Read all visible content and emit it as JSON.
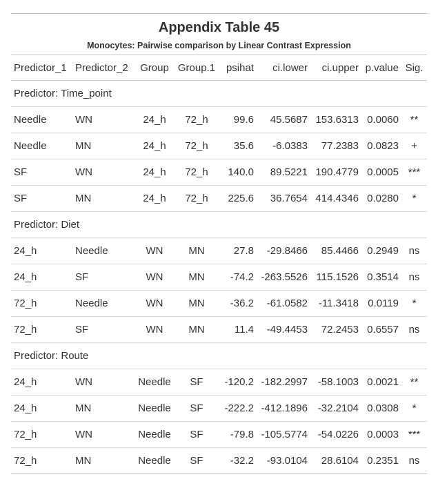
{
  "title": "Appendix Table 45",
  "subtitle": "Monocytes: Pairwise comparison by Linear Contrast Expression",
  "columns": [
    "Predictor_1",
    "Predictor_2",
    "Group",
    "Group.1",
    "psihat",
    "ci.lower",
    "ci.upper",
    "p.value",
    "Sig."
  ],
  "sections": [
    {
      "label": "Predictor: Time_point",
      "rows": [
        [
          "Needle",
          "WN",
          "24_h",
          "72_h",
          "99.6",
          "45.5687",
          "153.6313",
          "0.0060",
          "**"
        ],
        [
          "Needle",
          "MN",
          "24_h",
          "72_h",
          "35.6",
          "-6.0383",
          "77.2383",
          "0.0823",
          "+"
        ],
        [
          "SF",
          "WN",
          "24_h",
          "72_h",
          "140.0",
          "89.5221",
          "190.4779",
          "0.0005",
          "***"
        ],
        [
          "SF",
          "MN",
          "24_h",
          "72_h",
          "225.6",
          "36.7654",
          "414.4346",
          "0.0280",
          "*"
        ]
      ]
    },
    {
      "label": "Predictor: Diet",
      "rows": [
        [
          "24_h",
          "Needle",
          "WN",
          "MN",
          "27.8",
          "-29.8466",
          "85.4466",
          "0.2949",
          "ns"
        ],
        [
          "24_h",
          "SF",
          "WN",
          "MN",
          "-74.2",
          "-263.5526",
          "115.1526",
          "0.3514",
          "ns"
        ],
        [
          "72_h",
          "Needle",
          "WN",
          "MN",
          "-36.2",
          "-61.0582",
          "-11.3418",
          "0.0119",
          "*"
        ],
        [
          "72_h",
          "SF",
          "WN",
          "MN",
          "11.4",
          "-49.4453",
          "72.2453",
          "0.6557",
          "ns"
        ]
      ]
    },
    {
      "label": "Predictor: Route",
      "rows": [
        [
          "24_h",
          "WN",
          "Needle",
          "SF",
          "-120.2",
          "-182.2997",
          "-58.1003",
          "0.0021",
          "**"
        ],
        [
          "24_h",
          "MN",
          "Needle",
          "SF",
          "-222.2",
          "-412.1896",
          "-32.2104",
          "0.0308",
          "*"
        ],
        [
          "72_h",
          "WN",
          "Needle",
          "SF",
          "-79.8",
          "-105.5774",
          "-54.0226",
          "0.0003",
          "***"
        ],
        [
          "72_h",
          "MN",
          "Needle",
          "SF",
          "-32.2",
          "-93.0104",
          "28.6104",
          "0.2351",
          "ns"
        ]
      ]
    }
  ]
}
